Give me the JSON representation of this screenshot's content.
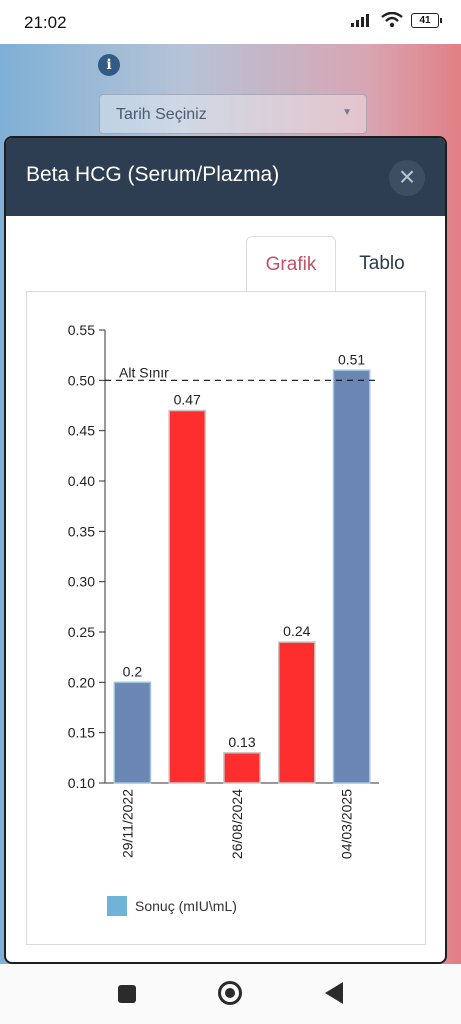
{
  "status_bar": {
    "time": "21:02",
    "battery": "41"
  },
  "background": {
    "date_select_label": "Tarih Seçiniz"
  },
  "modal": {
    "title": "Beta HCG (Serum/Plazma)",
    "close_label": "×",
    "tabs": [
      {
        "label": "Grafik",
        "active": true
      },
      {
        "label": "Tablo",
        "active": false
      }
    ]
  },
  "colors": {
    "normal_bar": "#6a87b3",
    "low_bar": "#ff2e2e",
    "legend_swatch": "#6fb3d8",
    "header_bg": "#2d3e52",
    "active_tab": "#c65064"
  },
  "chart_data": {
    "type": "bar",
    "values": [
      0.2,
      0.47,
      0.13,
      0.24,
      0.51
    ],
    "value_labels": [
      "0.2",
      "0.47",
      "0.13",
      "0.24",
      "0.51"
    ],
    "bar_status": [
      "normal",
      "low",
      "low",
      "low",
      "normal"
    ],
    "x_tick_labels": [
      "29/11/2022",
      "26/08/2024",
      "04/03/2025"
    ],
    "ylim": [
      0.1,
      0.55
    ],
    "y_ticks": [
      "0.10",
      "0.15",
      "0.20",
      "0.25",
      "0.30",
      "0.35",
      "0.40",
      "0.45",
      "0.50",
      "0.55"
    ],
    "reference_line": {
      "label": "Alt Sınır",
      "value": 0.5
    },
    "legend": [
      {
        "label": "Sonuç (mIU\\mL)"
      }
    ],
    "grid": false
  }
}
